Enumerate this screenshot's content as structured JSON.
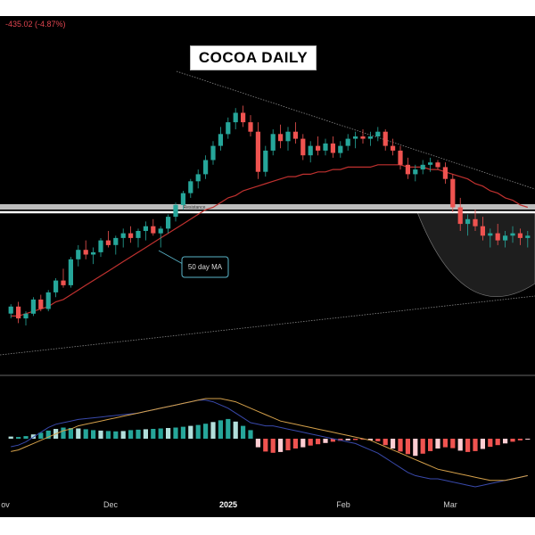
{
  "chart": {
    "change": "-435.02 (-4.87%)",
    "title": "COCOA DAILY",
    "resistance_label": "Resistance",
    "ma_label": "50 day MA",
    "x_ticks": [
      {
        "label": "ov",
        "bold": false
      },
      {
        "label": "Dec",
        "bold": false
      },
      {
        "label": "2025",
        "bold": true
      },
      {
        "label": "Feb",
        "bold": false
      },
      {
        "label": "Mar",
        "bold": false
      }
    ]
  },
  "chart_data": {
    "type": "candlestick",
    "title": "COCOA DAILY",
    "colors": {
      "up": "#26a69a",
      "down": "#ef5350",
      "ma": "#c0312f",
      "resistance": "#ffffff",
      "macd": "#3949ab",
      "signal": "#d4a04a"
    },
    "candles": [
      [
        0.05,
        0.09,
        0.03,
        0.08
      ],
      [
        0.08,
        0.1,
        0.01,
        0.03
      ],
      [
        0.03,
        0.06,
        0.0,
        0.05
      ],
      [
        0.05,
        0.12,
        0.04,
        0.11
      ],
      [
        0.11,
        0.13,
        0.06,
        0.07
      ],
      [
        0.07,
        0.15,
        0.06,
        0.14
      ],
      [
        0.14,
        0.2,
        0.12,
        0.19
      ],
      [
        0.19,
        0.24,
        0.16,
        0.17
      ],
      [
        0.17,
        0.29,
        0.16,
        0.28
      ],
      [
        0.28,
        0.34,
        0.25,
        0.32
      ],
      [
        0.32,
        0.36,
        0.28,
        0.3
      ],
      [
        0.3,
        0.33,
        0.26,
        0.31
      ],
      [
        0.31,
        0.37,
        0.29,
        0.36
      ],
      [
        0.36,
        0.4,
        0.33,
        0.34
      ],
      [
        0.34,
        0.38,
        0.3,
        0.37
      ],
      [
        0.37,
        0.41,
        0.33,
        0.39
      ],
      [
        0.39,
        0.42,
        0.35,
        0.37
      ],
      [
        0.37,
        0.41,
        0.33,
        0.4
      ],
      [
        0.4,
        0.44,
        0.36,
        0.42
      ],
      [
        0.42,
        0.45,
        0.38,
        0.39
      ],
      [
        0.39,
        0.42,
        0.33,
        0.41
      ],
      [
        0.41,
        0.47,
        0.39,
        0.46
      ],
      [
        0.46,
        0.52,
        0.44,
        0.51
      ],
      [
        0.51,
        0.57,
        0.49,
        0.56
      ],
      [
        0.56,
        0.62,
        0.54,
        0.61
      ],
      [
        0.61,
        0.66,
        0.58,
        0.64
      ],
      [
        0.64,
        0.72,
        0.62,
        0.7
      ],
      [
        0.7,
        0.78,
        0.68,
        0.76
      ],
      [
        0.76,
        0.84,
        0.74,
        0.81
      ],
      [
        0.81,
        0.88,
        0.79,
        0.86
      ],
      [
        0.86,
        0.92,
        0.83,
        0.9
      ],
      [
        0.9,
        0.93,
        0.84,
        0.86
      ],
      [
        0.86,
        0.89,
        0.8,
        0.82
      ],
      [
        0.82,
        0.86,
        0.62,
        0.65
      ],
      [
        0.65,
        0.76,
        0.63,
        0.74
      ],
      [
        0.74,
        0.83,
        0.72,
        0.81
      ],
      [
        0.81,
        0.85,
        0.75,
        0.78
      ],
      [
        0.78,
        0.84,
        0.74,
        0.82
      ],
      [
        0.82,
        0.86,
        0.77,
        0.79
      ],
      [
        0.79,
        0.81,
        0.7,
        0.72
      ],
      [
        0.72,
        0.78,
        0.69,
        0.76
      ],
      [
        0.76,
        0.8,
        0.72,
        0.74
      ],
      [
        0.74,
        0.79,
        0.72,
        0.77
      ],
      [
        0.77,
        0.8,
        0.71,
        0.73
      ],
      [
        0.73,
        0.78,
        0.71,
        0.76
      ],
      [
        0.76,
        0.81,
        0.74,
        0.79
      ],
      [
        0.79,
        0.82,
        0.75,
        0.8
      ],
      [
        0.8,
        0.83,
        0.77,
        0.79
      ],
      [
        0.79,
        0.82,
        0.76,
        0.8
      ],
      [
        0.8,
        0.84,
        0.78,
        0.82
      ],
      [
        0.82,
        0.83,
        0.74,
        0.76
      ],
      [
        0.76,
        0.79,
        0.72,
        0.74
      ],
      [
        0.74,
        0.76,
        0.66,
        0.68
      ],
      [
        0.68,
        0.71,
        0.62,
        0.64
      ],
      [
        0.64,
        0.68,
        0.61,
        0.66
      ],
      [
        0.66,
        0.7,
        0.64,
        0.68
      ],
      [
        0.68,
        0.71,
        0.65,
        0.69
      ],
      [
        0.69,
        0.7,
        0.66,
        0.67
      ],
      [
        0.67,
        0.69,
        0.6,
        0.62
      ],
      [
        0.62,
        0.64,
        0.48,
        0.5
      ],
      [
        0.5,
        0.54,
        0.4,
        0.43
      ],
      [
        0.43,
        0.47,
        0.38,
        0.45
      ],
      [
        0.45,
        0.49,
        0.4,
        0.42
      ],
      [
        0.42,
        0.46,
        0.36,
        0.38
      ],
      [
        0.38,
        0.41,
        0.33,
        0.39
      ],
      [
        0.39,
        0.43,
        0.34,
        0.36
      ],
      [
        0.36,
        0.4,
        0.33,
        0.38
      ],
      [
        0.38,
        0.42,
        0.35,
        0.39
      ],
      [
        0.39,
        0.41,
        0.34,
        0.37
      ],
      [
        0.37,
        0.4,
        0.33,
        0.38
      ]
    ],
    "ma_50": [
      0.04,
      0.04,
      0.05,
      0.06,
      0.07,
      0.08,
      0.1,
      0.11,
      0.13,
      0.15,
      0.17,
      0.19,
      0.21,
      0.23,
      0.25,
      0.27,
      0.29,
      0.31,
      0.33,
      0.35,
      0.37,
      0.39,
      0.41,
      0.43,
      0.45,
      0.47,
      0.49,
      0.5,
      0.52,
      0.54,
      0.55,
      0.57,
      0.58,
      0.59,
      0.6,
      0.61,
      0.62,
      0.63,
      0.63,
      0.64,
      0.64,
      0.65,
      0.65,
      0.66,
      0.66,
      0.67,
      0.67,
      0.67,
      0.67,
      0.68,
      0.68,
      0.68,
      0.68,
      0.67,
      0.67,
      0.67,
      0.66,
      0.66,
      0.65,
      0.64,
      0.63,
      0.62,
      0.6,
      0.59,
      0.57,
      0.56,
      0.54,
      0.53,
      0.51,
      0.5
    ],
    "macd_hist": [
      0.1,
      0.08,
      0.12,
      0.2,
      0.28,
      0.38,
      0.46,
      0.52,
      0.5,
      0.48,
      0.44,
      0.4,
      0.38,
      0.36,
      0.34,
      0.36,
      0.4,
      0.42,
      0.44,
      0.46,
      0.48,
      0.5,
      0.52,
      0.56,
      0.6,
      0.64,
      0.7,
      0.78,
      0.86,
      0.92,
      0.8,
      0.6,
      0.4,
      -0.4,
      -0.6,
      -0.66,
      -0.62,
      -0.54,
      -0.46,
      -0.4,
      -0.32,
      -0.26,
      -0.2,
      -0.14,
      -0.1,
      -0.08,
      -0.06,
      -0.04,
      -0.08,
      -0.12,
      -0.3,
      -0.46,
      -0.6,
      -0.72,
      -0.8,
      -0.7,
      -0.58,
      -0.46,
      -0.4,
      -0.44,
      -0.56,
      -0.62,
      -0.58,
      -0.48,
      -0.38,
      -0.3,
      -0.22,
      -0.14,
      -0.08,
      -0.04
    ],
    "macd_line": [
      -0.5,
      -0.4,
      -0.2,
      0.1,
      0.4,
      0.7,
      0.9,
      1.0,
      1.1,
      1.2,
      1.25,
      1.3,
      1.35,
      1.4,
      1.45,
      1.5,
      1.55,
      1.6,
      1.7,
      1.8,
      1.9,
      2.0,
      2.1,
      2.2,
      2.3,
      2.4,
      2.4,
      2.3,
      2.1,
      1.9,
      1.6,
      1.3,
      1.0,
      0.9,
      0.8,
      0.8,
      0.7,
      0.6,
      0.5,
      0.4,
      0.3,
      0.2,
      0.1,
      0.0,
      -0.1,
      -0.2,
      -0.3,
      -0.5,
      -0.7,
      -0.9,
      -1.2,
      -1.5,
      -1.8,
      -2.1,
      -2.3,
      -2.4,
      -2.5,
      -2.5,
      -2.6,
      -2.7,
      -2.8,
      -2.9,
      -3.0,
      -2.9,
      -2.8,
      -2.7,
      -2.6,
      -2.5,
      -2.4,
      -2.3
    ],
    "signal_line": [
      -0.8,
      -0.7,
      -0.5,
      -0.3,
      -0.1,
      0.1,
      0.3,
      0.5,
      0.6,
      0.8,
      0.9,
      1.0,
      1.1,
      1.2,
      1.3,
      1.4,
      1.5,
      1.6,
      1.7,
      1.8,
      1.9,
      2.0,
      2.1,
      2.2,
      2.3,
      2.4,
      2.5,
      2.5,
      2.5,
      2.4,
      2.3,
      2.1,
      1.9,
      1.7,
      1.5,
      1.3,
      1.1,
      1.0,
      0.9,
      0.8,
      0.7,
      0.6,
      0.5,
      0.4,
      0.3,
      0.2,
      0.1,
      0.0,
      -0.1,
      -0.3,
      -0.5,
      -0.7,
      -0.9,
      -1.1,
      -1.3,
      -1.5,
      -1.7,
      -1.9,
      -2.0,
      -2.1,
      -2.2,
      -2.3,
      -2.4,
      -2.5,
      -2.6,
      -2.6,
      -2.6,
      -2.5,
      -2.4,
      -2.3
    ]
  }
}
